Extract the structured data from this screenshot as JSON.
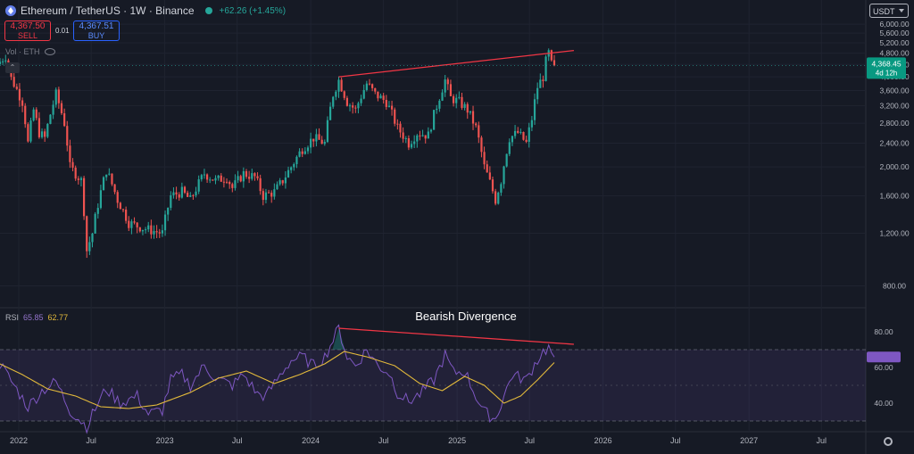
{
  "header": {
    "title": "Ethereum / TetherUS · 1W · Binance",
    "change": "+62.26 (+1.45%)",
    "sell_price": "4,367.50",
    "sell_label": "SELL",
    "spread": "0.01",
    "buy_price": "4,367.51",
    "buy_label": "BUY",
    "vol_label": "Vol · ETH",
    "currency": "USDT",
    "collapse_icon": "chevron-up-icon"
  },
  "price_badge": {
    "value": "4,368.45",
    "countdown": "4d 12h"
  },
  "rsi_legend": {
    "label": "RSI",
    "rsi_value": "65.85",
    "ma_value": "62.77"
  },
  "colors": {
    "up": "#26a69a",
    "down": "#ef5350",
    "trendline": "#f23645",
    "rsi": "#7e57c2",
    "rsi_ma": "#e2b93b",
    "bg": "#161a25"
  },
  "chart_data": [
    {
      "type": "candlestick",
      "series_name": "Ethereum / TetherUS",
      "ylim": [
        700,
        6300
      ],
      "y_ticks": [
        800,
        1200,
        1600,
        2000,
        2400,
        2800,
        3200,
        3600,
        4000,
        4400,
        4800,
        5200,
        5600,
        6000
      ],
      "y_tick_labels": [
        "800.00",
        "1,200.00",
        "1,600.00",
        "2,000.00",
        "2,400.00",
        "2,800.00",
        "3,200.00",
        "3,600.00",
        "4,000.00",
        "4,400.00",
        "4,800.00",
        "5,200.00",
        "5,600.00",
        "6,000.00"
      ],
      "x_ticks": [
        "2022",
        "Jul",
        "2023",
        "Jul",
        "2024",
        "Jul",
        "2025",
        "Jul",
        "2026",
        "Jul",
        "2027",
        "Jul"
      ],
      "x_tick_dates": [
        "2022-01-01",
        "2022-07-01",
        "2023-01-01",
        "2023-07-01",
        "2024-01-01",
        "2024-07-01",
        "2025-01-01",
        "2025-07-01",
        "2026-01-01",
        "2026-07-01",
        "2027-01-01",
        "2027-07-01"
      ],
      "x_range": [
        "2021-11-15",
        "2027-10-20"
      ],
      "close_anchors": [
        [
          "2021-11-15",
          4500
        ],
        [
          "2021-11-29",
          4700
        ],
        [
          "2021-12-13",
          3950
        ],
        [
          "2022-01-10",
          3300
        ],
        [
          "2022-01-24",
          2400
        ],
        [
          "2022-02-07",
          3100
        ],
        [
          "2022-02-21",
          2600
        ],
        [
          "2022-03-07",
          2500
        ],
        [
          "2022-04-04",
          3500
        ],
        [
          "2022-04-25",
          2800
        ],
        [
          "2022-05-09",
          2000
        ],
        [
          "2022-06-06",
          1800
        ],
        [
          "2022-06-20",
          1050
        ],
        [
          "2022-07-04",
          1200
        ],
        [
          "2022-08-08",
          1950
        ],
        [
          "2022-09-05",
          1550
        ],
        [
          "2022-10-03",
          1300
        ],
        [
          "2022-11-07",
          1250
        ],
        [
          "2022-12-05",
          1220
        ],
        [
          "2022-12-26",
          1200
        ],
        [
          "2023-01-16",
          1600
        ],
        [
          "2023-02-13",
          1650
        ],
        [
          "2023-03-06",
          1550
        ],
        [
          "2023-04-10",
          1900
        ],
        [
          "2023-05-08",
          1800
        ],
        [
          "2023-06-05",
          1850
        ],
        [
          "2023-06-19",
          1700
        ],
        [
          "2023-07-17",
          1900
        ],
        [
          "2023-08-14",
          1850
        ],
        [
          "2023-09-04",
          1600
        ],
        [
          "2023-10-02",
          1650
        ],
        [
          "2023-10-23",
          1800
        ],
        [
          "2023-11-13",
          2000
        ],
        [
          "2023-12-11",
          2300
        ],
        [
          "2024-01-08",
          2500
        ],
        [
          "2024-02-05",
          2400
        ],
        [
          "2024-02-26",
          3500
        ],
        [
          "2024-03-11",
          3900
        ],
        [
          "2024-04-01",
          3300
        ],
        [
          "2024-04-22",
          3100
        ],
        [
          "2024-05-20",
          3800
        ],
        [
          "2024-06-10",
          3500
        ],
        [
          "2024-07-08",
          3300
        ],
        [
          "2024-08-05",
          2700
        ],
        [
          "2024-09-02",
          2400
        ],
        [
          "2024-09-23",
          2600
        ],
        [
          "2024-10-21",
          2550
        ],
        [
          "2024-11-11",
          3200
        ],
        [
          "2024-12-02",
          3900
        ],
        [
          "2024-12-16",
          3400
        ],
        [
          "2025-01-06",
          3300
        ],
        [
          "2025-01-27",
          3100
        ],
        [
          "2025-02-17",
          2700
        ],
        [
          "2025-03-10",
          2000
        ],
        [
          "2025-04-07",
          1550
        ],
        [
          "2025-04-21",
          1800
        ],
        [
          "2025-05-12",
          2500
        ],
        [
          "2025-06-02",
          2600
        ],
        [
          "2025-06-23",
          2400
        ],
        [
          "2025-07-07",
          2900
        ],
        [
          "2025-07-21",
          3700
        ],
        [
          "2025-08-04",
          4000
        ],
        [
          "2025-08-11",
          4500
        ],
        [
          "2025-08-18",
          4800
        ],
        [
          "2025-08-25",
          4400
        ],
        [
          "2025-09-01",
          4368
        ]
      ],
      "trendline": {
        "from": [
          "2024-03-11",
          4000
        ],
        "to": [
          "2025-10-20",
          4900
        ]
      },
      "last_price": 4368.45
    },
    {
      "type": "line",
      "title": "RSI",
      "ylim": [
        25,
        88
      ],
      "y_ticks": [
        40,
        60,
        80
      ],
      "y_tick_labels": [
        "40.00",
        "60.00",
        "80.00"
      ],
      "band": {
        "upper": 70,
        "middle": 50,
        "lower": 30
      },
      "series": [
        {
          "name": "RSI",
          "anchors": [
            [
              "2021-11-15",
              62
            ],
            [
              "2021-12-20",
              50
            ],
            [
              "2022-01-24",
              38
            ],
            [
              "2022-02-28",
              47
            ],
            [
              "2022-04-04",
              52
            ],
            [
              "2022-05-09",
              36
            ],
            [
              "2022-06-20",
              27
            ],
            [
              "2022-07-18",
              40
            ],
            [
              "2022-08-08",
              48
            ],
            [
              "2022-09-12",
              40
            ],
            [
              "2022-10-24",
              44
            ],
            [
              "2022-11-21",
              34
            ],
            [
              "2022-12-26",
              36
            ],
            [
              "2023-01-16",
              53
            ],
            [
              "2023-02-13",
              56
            ],
            [
              "2023-03-06",
              50
            ],
            [
              "2023-04-10",
              61
            ],
            [
              "2023-05-08",
              54
            ],
            [
              "2023-06-19",
              50
            ],
            [
              "2023-07-17",
              56
            ],
            [
              "2023-08-21",
              45
            ],
            [
              "2023-09-11",
              44
            ],
            [
              "2023-10-23",
              58
            ],
            [
              "2023-11-13",
              64
            ],
            [
              "2023-12-11",
              66
            ],
            [
              "2024-01-08",
              61
            ],
            [
              "2024-02-05",
              66
            ],
            [
              "2024-03-11",
              82
            ],
            [
              "2024-04-01",
              66
            ],
            [
              "2024-04-22",
              61
            ],
            [
              "2024-05-20",
              70
            ],
            [
              "2024-06-17",
              61
            ],
            [
              "2024-07-15",
              57
            ],
            [
              "2024-08-05",
              46
            ],
            [
              "2024-09-02",
              41
            ],
            [
              "2024-09-30",
              45
            ],
            [
              "2024-11-04",
              53
            ],
            [
              "2024-12-02",
              67
            ],
            [
              "2024-12-23",
              57
            ],
            [
              "2025-01-20",
              58
            ],
            [
              "2025-02-17",
              44
            ],
            [
              "2025-03-10",
              35
            ],
            [
              "2025-04-07",
              31
            ],
            [
              "2025-04-28",
              44
            ],
            [
              "2025-05-19",
              56
            ],
            [
              "2025-06-23",
              53
            ],
            [
              "2025-07-14",
              62
            ],
            [
              "2025-08-04",
              69
            ],
            [
              "2025-08-18",
              71
            ],
            [
              "2025-09-01",
              65.85
            ]
          ]
        },
        {
          "name": "RSI-based MA",
          "anchors": [
            [
              "2021-11-15",
              62
            ],
            [
              "2022-01-10",
              56
            ],
            [
              "2022-03-14",
              48
            ],
            [
              "2022-05-23",
              44
            ],
            [
              "2022-07-25",
              38
            ],
            [
              "2022-10-03",
              37
            ],
            [
              "2022-12-12",
              39
            ],
            [
              "2023-03-06",
              46
            ],
            [
              "2023-05-15",
              54
            ],
            [
              "2023-07-24",
              58
            ],
            [
              "2023-10-02",
              51
            ],
            [
              "2023-12-04",
              56
            ],
            [
              "2024-02-05",
              62
            ],
            [
              "2024-03-25",
              69
            ],
            [
              "2024-05-20",
              66
            ],
            [
              "2024-07-29",
              61
            ],
            [
              "2024-09-30",
              51
            ],
            [
              "2024-11-25",
              47
            ],
            [
              "2025-01-20",
              55
            ],
            [
              "2025-03-10",
              50
            ],
            [
              "2025-04-28",
              40
            ],
            [
              "2025-06-09",
              44
            ],
            [
              "2025-07-21",
              53
            ],
            [
              "2025-09-01",
              62.77
            ]
          ]
        }
      ],
      "divergence_line": {
        "from": [
          "2024-03-11",
          82
        ],
        "to": [
          "2025-10-20",
          73
        ]
      },
      "annotation": "Bearish Divergence"
    }
  ]
}
